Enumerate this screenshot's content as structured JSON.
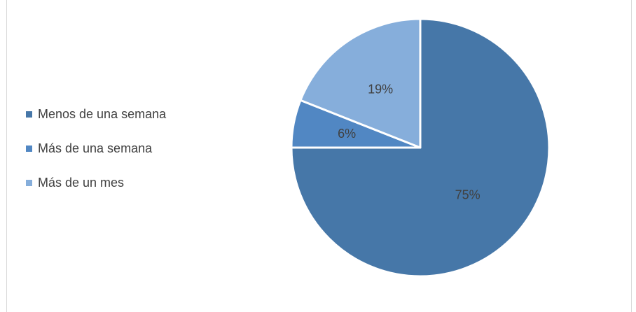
{
  "chart_data": {
    "type": "pie",
    "title": "",
    "legend_position": "left",
    "categories": [
      "Menos de una semana",
      "Más de una semana",
      "Más de un mes"
    ],
    "values": [
      75,
      6,
      19
    ],
    "data_labels": [
      "75%",
      "6%",
      "19%"
    ],
    "colors": [
      "#4677a8",
      "#5187c3",
      "#86aedb"
    ]
  }
}
